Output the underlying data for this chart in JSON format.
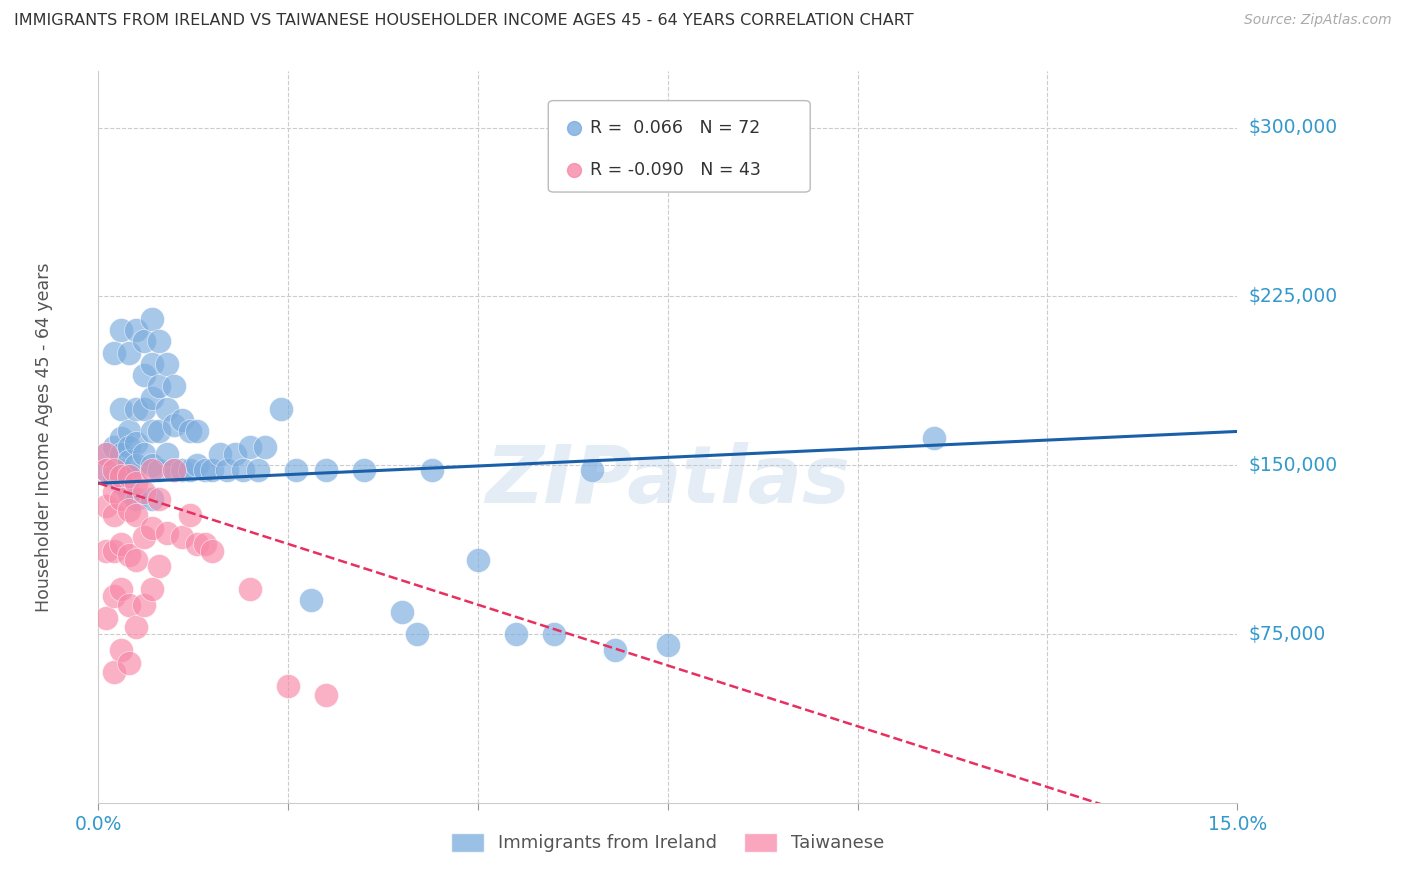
{
  "title": "IMMIGRANTS FROM IRELAND VS TAIWANESE HOUSEHOLDER INCOME AGES 45 - 64 YEARS CORRELATION CHART",
  "source": "Source: ZipAtlas.com",
  "ylabel": "Householder Income Ages 45 - 64 years",
  "xlim": [
    0.0,
    0.15
  ],
  "ylim": [
    0,
    325000
  ],
  "yticks": [
    75000,
    150000,
    225000,
    300000
  ],
  "ytick_labels": [
    "$75,000",
    "$150,000",
    "$225,000",
    "$300,000"
  ],
  "xticks": [
    0.0,
    0.025,
    0.05,
    0.075,
    0.1,
    0.125,
    0.15
  ],
  "xtick_labels": [
    "0.0%",
    "",
    "",
    "",
    "",
    "",
    "15.0%"
  ],
  "background_color": "#ffffff",
  "grid_color": "#cccccc",
  "watermark": "ZIPatlas",
  "ireland_color": "#7aabde",
  "taiwanese_color": "#f888a8",
  "ireland_line_color": "#1a5fa8",
  "taiwanese_line_color": "#e83060",
  "ireland_R": 0.066,
  "ireland_N": 72,
  "taiwanese_R": -0.09,
  "taiwanese_N": 43,
  "ireland_x": [
    0.001,
    0.001,
    0.002,
    0.002,
    0.002,
    0.003,
    0.003,
    0.003,
    0.003,
    0.003,
    0.003,
    0.004,
    0.004,
    0.004,
    0.004,
    0.004,
    0.004,
    0.005,
    0.005,
    0.005,
    0.005,
    0.005,
    0.006,
    0.006,
    0.006,
    0.006,
    0.007,
    0.007,
    0.007,
    0.007,
    0.007,
    0.007,
    0.008,
    0.008,
    0.008,
    0.008,
    0.009,
    0.009,
    0.009,
    0.01,
    0.01,
    0.01,
    0.011,
    0.011,
    0.012,
    0.012,
    0.013,
    0.013,
    0.014,
    0.015,
    0.016,
    0.017,
    0.018,
    0.019,
    0.02,
    0.021,
    0.022,
    0.024,
    0.026,
    0.028,
    0.03,
    0.035,
    0.04,
    0.042,
    0.044,
    0.05,
    0.055,
    0.06,
    0.065,
    0.068,
    0.075,
    0.11
  ],
  "ireland_y": [
    155000,
    148000,
    158000,
    145000,
    200000,
    162000,
    155000,
    148000,
    142000,
    210000,
    175000,
    165000,
    158000,
    152000,
    145000,
    138000,
    200000,
    210000,
    175000,
    160000,
    150000,
    135000,
    205000,
    190000,
    175000,
    155000,
    215000,
    195000,
    180000,
    165000,
    150000,
    135000,
    205000,
    185000,
    165000,
    148000,
    195000,
    175000,
    155000,
    185000,
    168000,
    148000,
    170000,
    148000,
    165000,
    148000,
    165000,
    150000,
    148000,
    148000,
    155000,
    148000,
    155000,
    148000,
    158000,
    148000,
    158000,
    175000,
    148000,
    90000,
    148000,
    148000,
    85000,
    75000,
    148000,
    108000,
    75000,
    75000,
    148000,
    68000,
    70000,
    162000
  ],
  "taiwanese_x": [
    0.001,
    0.001,
    0.001,
    0.001,
    0.001,
    0.002,
    0.002,
    0.002,
    0.002,
    0.002,
    0.002,
    0.003,
    0.003,
    0.003,
    0.003,
    0.003,
    0.004,
    0.004,
    0.004,
    0.004,
    0.004,
    0.005,
    0.005,
    0.005,
    0.005,
    0.006,
    0.006,
    0.006,
    0.007,
    0.007,
    0.007,
    0.008,
    0.008,
    0.009,
    0.01,
    0.011,
    0.012,
    0.013,
    0.014,
    0.015,
    0.02,
    0.025,
    0.03
  ],
  "taiwanese_y": [
    155000,
    148000,
    132000,
    112000,
    82000,
    148000,
    138000,
    128000,
    112000,
    92000,
    58000,
    145000,
    135000,
    115000,
    95000,
    68000,
    145000,
    130000,
    110000,
    88000,
    62000,
    142000,
    128000,
    108000,
    78000,
    138000,
    118000,
    88000,
    148000,
    122000,
    95000,
    135000,
    105000,
    120000,
    148000,
    118000,
    128000,
    115000,
    115000,
    112000,
    95000,
    52000,
    48000
  ]
}
